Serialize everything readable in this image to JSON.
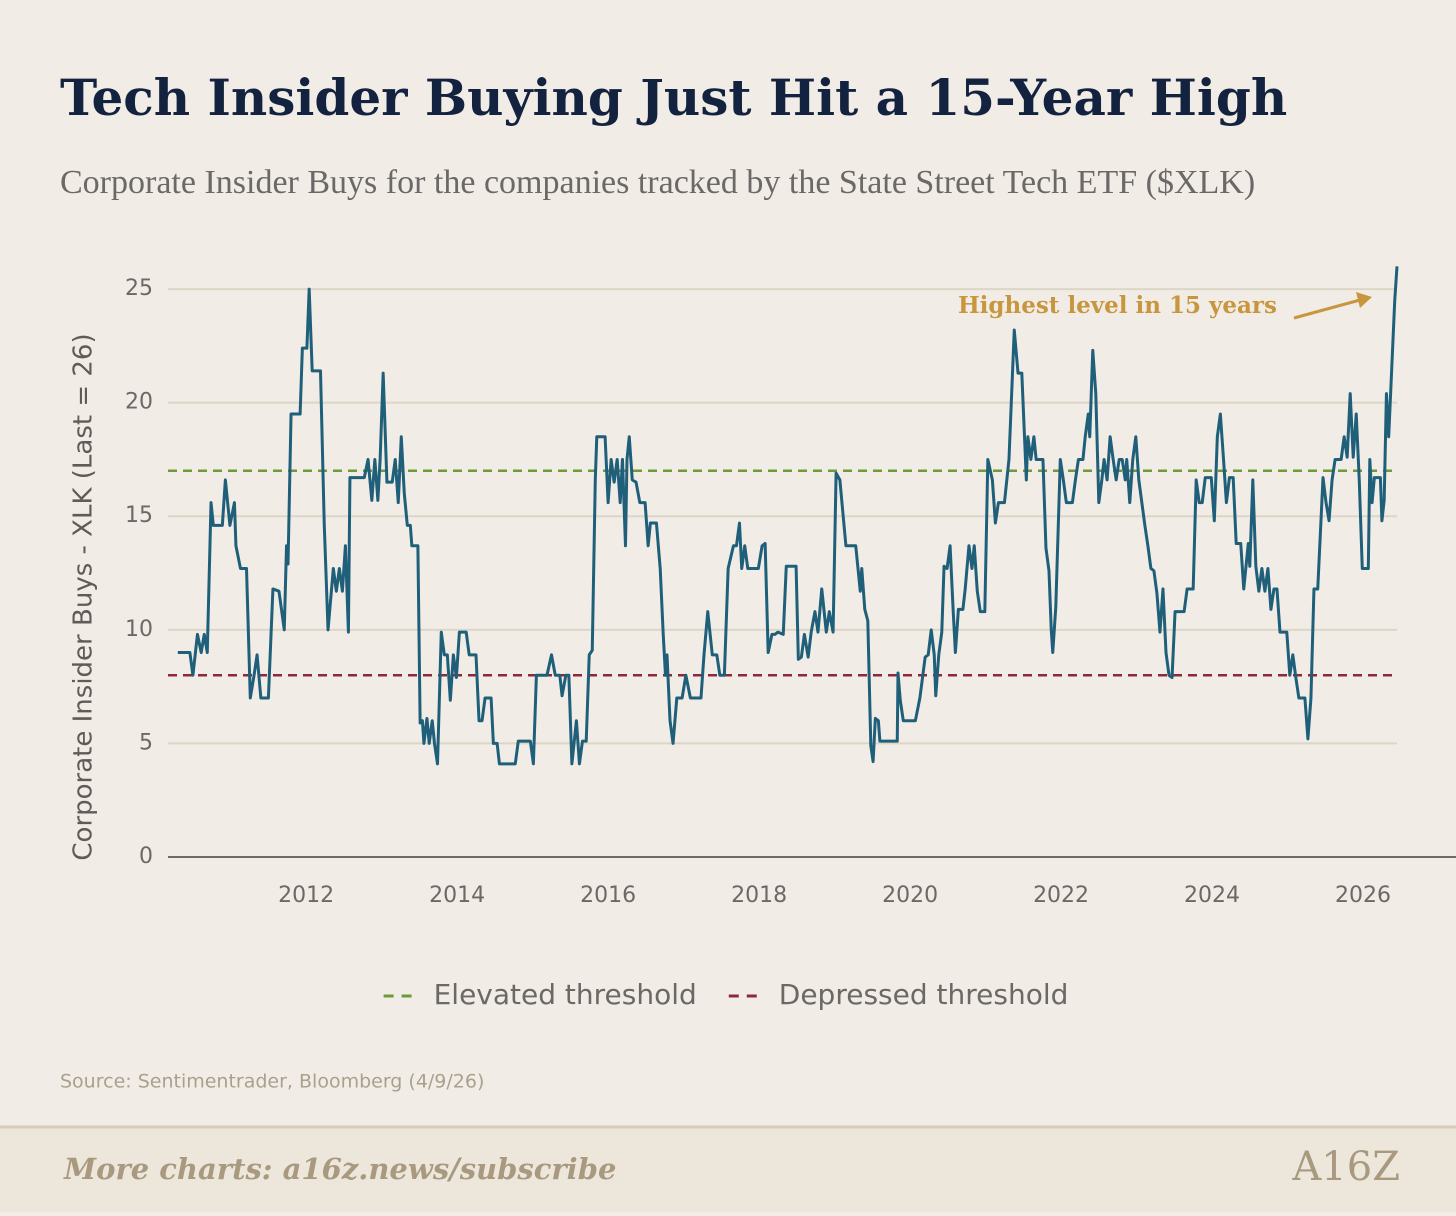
{
  "chart_data": {
    "type": "line",
    "title": "Tech Insider Buying Just Hit a 15-Year High",
    "subtitle": "Corporate Insider Buys for the companies tracked by the State Street Tech ETF ($XLK)",
    "y_label": "Corporate Insider Buys - XLK (Last = 26)",
    "annotation": "Highest level in 15 years",
    "source": "Source: Sentimentrader, Bloomberg (4/9/26)",
    "footer": "More charts: a16z.news/subscribe",
    "logo": "A16Z",
    "xlim": [
      2010.17,
      2026.45
    ],
    "xticks": [
      2012,
      2014,
      2016,
      2018,
      2020,
      2022,
      2024,
      2026
    ],
    "ylim": [
      0,
      26.5
    ],
    "yticks": [
      0,
      5,
      10,
      15,
      20,
      25
    ],
    "grid": true,
    "reference_lines": [
      {
        "name": "Elevated threshold",
        "value": 17,
        "color": "#6f9a3a"
      },
      {
        "name": "Depressed threshold",
        "value": 8,
        "color": "#8c2a3c"
      }
    ],
    "x": [
      2010.3,
      2010.46,
      2010.5,
      2010.56,
      2010.61,
      2010.65,
      2010.69,
      2010.74,
      2010.77,
      2010.89,
      2010.93,
      2010.99,
      2011.05,
      2011.07,
      2011.13,
      2011.21,
      2011.26,
      2011.31,
      2011.35,
      2011.4,
      2011.5,
      2011.56,
      2011.64,
      2011.71,
      2011.74,
      2011.76,
      2011.8,
      2011.92,
      2011.95,
      2012.01,
      2012.04,
      2012.08,
      2012.19,
      2012.24,
      2012.29,
      2012.36,
      2012.4,
      2012.44,
      2012.48,
      2012.52,
      2012.56,
      2012.58,
      2012.77,
      2012.82,
      2012.87,
      2012.91,
      2012.95,
      2012.98,
      2013.02,
      2013.07,
      2013.14,
      2013.18,
      2013.22,
      2013.26,
      2013.3,
      2013.34,
      2013.38,
      2013.4,
      2013.48,
      2013.51,
      2013.54,
      2013.56,
      2013.6,
      2013.63,
      2013.67,
      2013.7,
      2013.74,
      2013.79,
      2013.83,
      2013.87,
      2013.91,
      2013.95,
      2013.99,
      2014.03,
      2014.12,
      2014.16,
      2014.25,
      2014.29,
      2014.33,
      2014.37,
      2014.45,
      2014.48,
      2014.53,
      2014.56,
      2014.77,
      2014.81,
      2014.97,
      2015.01,
      2015.05,
      2015.19,
      2015.25,
      2015.3,
      2015.36,
      2015.39,
      2015.44,
      2015.48,
      2015.52,
      2015.58,
      2015.62,
      2015.66,
      2015.71,
      2015.75,
      2015.79,
      2015.83,
      2015.85,
      2015.96,
      2016.0,
      2016.04,
      2016.08,
      2016.12,
      2016.16,
      2016.19,
      2016.23,
      2016.25,
      2016.28,
      2016.32,
      2016.37,
      2016.42,
      2016.49,
      2016.53,
      2016.56,
      2016.64,
      2016.69,
      2016.73,
      2016.76,
      2016.78,
      2016.82,
      2016.86,
      2016.91,
      2016.98,
      2017.03,
      2017.09,
      2017.23,
      2017.27,
      2017.32,
      2017.38,
      2017.44,
      2017.48,
      2017.54,
      2017.59,
      2017.66,
      2017.7,
      2017.74,
      2017.77,
      2017.81,
      2017.85,
      2017.99,
      2018.04,
      2018.08,
      2018.12,
      2018.17,
      2018.21,
      2018.25,
      2018.32,
      2018.36,
      2018.41,
      2018.49,
      2018.52,
      2018.56,
      2018.6,
      2018.65,
      2018.69,
      2018.74,
      2018.78,
      2018.83,
      2018.89,
      2018.93,
      2018.98,
      2019.02,
      2019.07,
      2019.15,
      2019.28,
      2019.34,
      2019.36,
      2019.4,
      2019.44,
      2019.48,
      2019.51,
      2019.54,
      2019.58,
      2019.6,
      2019.83,
      2019.84,
      2019.87,
      2019.91,
      2020.07,
      2020.13,
      2020.2,
      2020.24,
      2020.28,
      2020.32,
      2020.34,
      2020.38,
      2020.42,
      2020.45,
      2020.49,
      2020.53,
      2020.57,
      2020.6,
      2020.64,
      2020.7,
      2020.73,
      2020.78,
      2020.82,
      2020.85,
      2020.89,
      2020.93,
      2020.99,
      2021.03,
      2021.09,
      2021.13,
      2021.17,
      2021.25,
      2021.31,
      2021.38,
      2021.43,
      2021.48,
      2021.54,
      2021.56,
      2021.6,
      2021.64,
      2021.67,
      2021.76,
      2021.8,
      2021.84,
      2021.87,
      2021.89,
      2021.93,
      2021.99,
      2022.03,
      2022.07,
      2022.15,
      2022.19,
      2022.23,
      2022.29,
      2022.32,
      2022.36,
      2022.38,
      2022.42,
      2022.46,
      2022.5,
      2022.54,
      2022.57,
      2022.61,
      2022.65,
      2022.69,
      2022.73,
      2022.77,
      2022.81,
      2022.85,
      2022.87,
      2022.91,
      2022.95,
      2022.99,
      2023.03,
      2023.07,
      2023.11,
      2023.15,
      2023.19,
      2023.23,
      2023.27,
      2023.31,
      2023.35,
      2023.39,
      2023.43,
      2023.47,
      2023.51,
      2023.63,
      2023.67,
      2023.75,
      2023.79,
      2023.83,
      2023.87,
      2023.91,
      2023.99,
      2024.03,
      2024.07,
      2024.11,
      2024.15,
      2024.19,
      2024.23,
      2024.28,
      2024.32,
      2024.38,
      2024.42,
      2024.48,
      2024.5,
      2024.54,
      2024.58,
      2024.62,
      2024.66,
      2024.7,
      2024.74,
      2024.78,
      2024.82,
      2024.86,
      2024.9,
      2024.99,
      2025.03,
      2025.07,
      2025.11,
      2025.15,
      2025.23,
      2025.27,
      2025.31,
      2025.35,
      2025.4,
      2025.47,
      2025.51,
      2025.55,
      2025.59,
      2025.63,
      2025.71,
      2025.75,
      2025.79,
      2025.83,
      2025.87,
      2025.91,
      2025.95,
      2025.99,
      2026.07,
      2026.09,
      2026.12,
      2026.15,
      2026.23,
      2026.25,
      2026.28,
      2026.31,
      2026.34,
      2026.38,
      2026.42,
      2026.45
    ],
    "series": [
      {
        "color": "#1f5f7a",
        "values": [
          9,
          9,
          8,
          9.8,
          9,
          9.8,
          9,
          15.6,
          14.6,
          14.6,
          16.6,
          14.6,
          15.6,
          13.7,
          12.7,
          12.7,
          7,
          8,
          8.9,
          7,
          7,
          11.8,
          11.7,
          10,
          13.7,
          12.9,
          19.5,
          19.5,
          22.4,
          22.4,
          25,
          21.4,
          21.4,
          14.6,
          10,
          12.7,
          11.7,
          12.7,
          11.7,
          13.7,
          9.9,
          16.7,
          16.7,
          17.5,
          15.7,
          17.5,
          15.7,
          17.5,
          21.3,
          16.5,
          16.5,
          17.5,
          15.6,
          18.5,
          16,
          14.6,
          14.6,
          13.7,
          13.7,
          5.9,
          6,
          5,
          6.1,
          5,
          6,
          5,
          4.1,
          9.9,
          8.9,
          8.9,
          6.9,
          8.9,
          7.9,
          9.9,
          9.9,
          8.9,
          8.9,
          6,
          6,
          7,
          7,
          5,
          5,
          4.1,
          4.1,
          5.1,
          5.1,
          4.1,
          8,
          8,
          8.9,
          8,
          8,
          7.1,
          8,
          8,
          4.1,
          6,
          4.1,
          5.1,
          5.1,
          8.9,
          9.1,
          16.6,
          18.5,
          18.5,
          15.6,
          17.5,
          16.5,
          17.5,
          15.6,
          17.5,
          13.7,
          17.5,
          18.5,
          16.6,
          16.5,
          15.6,
          15.6,
          13.7,
          14.7,
          14.7,
          12.7,
          9.8,
          8,
          8.9,
          6,
          5,
          7,
          7,
          8,
          7,
          7,
          8.9,
          10.8,
          8.9,
          8.9,
          8,
          8,
          12.7,
          13.7,
          13.7,
          14.7,
          12.7,
          13.7,
          12.7,
          12.7,
          13.7,
          13.8,
          9,
          9.8,
          9.8,
          9.9,
          9.8,
          12.8,
          12.8,
          12.8,
          8.7,
          8.8,
          9.8,
          8.8,
          9.9,
          10.8,
          9.9,
          11.8,
          9.9,
          10.8,
          9.9,
          16.9,
          16.6,
          13.7,
          13.7,
          11.7,
          12.7,
          10.9,
          10.4,
          4.9,
          4.2,
          6.1,
          6,
          5.1,
          5.1,
          8.1,
          6.9,
          6,
          6,
          7,
          8.8,
          8.9,
          10,
          8.9,
          7.1,
          8.9,
          9.9,
          12.8,
          12.7,
          13.7,
          10.9,
          9,
          10.9,
          10.9,
          11.8,
          13.7,
          12.7,
          13.7,
          11.7,
          10.8,
          10.8,
          17.5,
          16.6,
          14.7,
          15.6,
          15.6,
          17.5,
          23.2,
          21.3,
          21.3,
          16.6,
          18.5,
          17.5,
          18.5,
          17.5,
          17.5,
          13.6,
          12.6,
          10,
          9,
          11,
          17.5,
          16.6,
          15.6,
          15.6,
          16.6,
          17.5,
          17.5,
          18.5,
          19.5,
          18.5,
          22.3,
          20.4,
          15.6,
          16.6,
          17.5,
          16.6,
          18.5,
          17.5,
          16.6,
          17.5,
          17.5,
          16.6,
          17.5,
          15.6,
          17.5,
          18.5,
          16.6,
          15.6,
          14.6,
          13.7,
          12.7,
          12.6,
          11.6,
          9.9,
          11.8,
          9,
          8,
          7.9,
          10.8,
          10.8,
          11.8,
          11.8,
          16.6,
          15.6,
          15.6,
          16.7,
          16.7,
          14.8,
          18.5,
          19.5,
          17.6,
          15.6,
          16.7,
          16.7,
          13.8,
          13.8,
          11.8,
          13.8,
          12.8,
          16.6,
          12.8,
          11.7,
          12.7,
          11.7,
          12.7,
          10.9,
          11.8,
          11.8,
          9.9,
          9.9,
          8,
          8.9,
          7.9,
          7,
          7,
          5.2,
          7,
          11.8,
          11.8,
          16.7,
          15.6,
          14.8,
          16.6,
          17.5,
          17.5,
          18.5,
          17.6,
          20.4,
          17.6,
          19.5,
          16.6,
          12.7,
          12.7,
          17.5,
          15.6,
          16.7,
          16.7,
          14.8,
          15.7,
          20.4,
          18.5,
          21.5,
          24.5,
          26
        ]
      }
    ]
  }
}
